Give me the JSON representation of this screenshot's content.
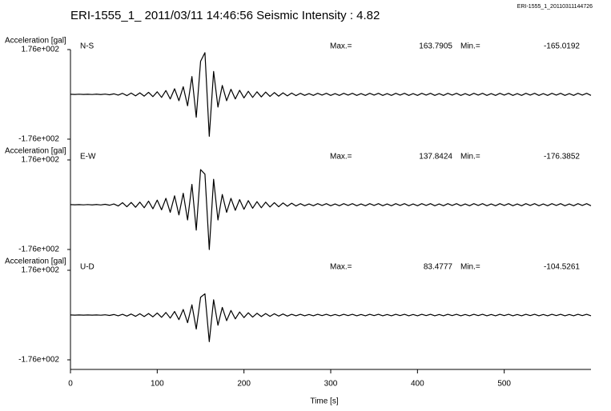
{
  "chart_data": {
    "type": "line",
    "title": "ERI-1555_1_  2011/03/11 14:46:56  Seismic Intensity : 4.82",
    "file_label": "ERI-1555_1_20110311144726",
    "ylabel": "Acceleration [gal]",
    "xlabel": "Time [s]",
    "max_label": "Max.=",
    "min_label": "Min.=",
    "xlim": [
      0,
      600
    ],
    "xticks": [
      0,
      100,
      200,
      300,
      400,
      500
    ],
    "ylim": [
      -176,
      176
    ],
    "yticks": [
      {
        "value": 176,
        "label": "1.76e+002"
      },
      {
        "value": -176,
        "label": "-1.76e+002"
      }
    ],
    "color": "#000000",
    "x": [
      0,
      5,
      10,
      15,
      20,
      25,
      30,
      35,
      40,
      45,
      50,
      55,
      60,
      65,
      70,
      75,
      80,
      85,
      90,
      95,
      100,
      105,
      110,
      115,
      120,
      125,
      130,
      135,
      140,
      145,
      150,
      155,
      160,
      165,
      170,
      175,
      180,
      185,
      190,
      195,
      200,
      205,
      210,
      215,
      220,
      225,
      230,
      235,
      240,
      245,
      250,
      255,
      260,
      265,
      270,
      275,
      280,
      285,
      290,
      295,
      300,
      305,
      310,
      315,
      320,
      325,
      330,
      335,
      340,
      345,
      350,
      355,
      360,
      365,
      370,
      375,
      380,
      385,
      390,
      395,
      400,
      405,
      410,
      415,
      420,
      425,
      430,
      435,
      440,
      445,
      450,
      455,
      460,
      465,
      470,
      475,
      480,
      485,
      490,
      495,
      500,
      505,
      510,
      515,
      520,
      525,
      530,
      535,
      540,
      545,
      550,
      555,
      560,
      565,
      570,
      575,
      580,
      585,
      590,
      595,
      600
    ],
    "series": [
      {
        "name": "N-S",
        "max": 163.7905,
        "min": -165.0192,
        "values": [
          0.5,
          -0.5,
          0.6,
          -0.5,
          0.5,
          -0.6,
          0.7,
          -0.8,
          1,
          -1.5,
          2,
          -3,
          4,
          -5,
          5,
          -6,
          6,
          -7,
          8,
          -9,
          10,
          -12,
          15,
          -18,
          22,
          -25,
          30,
          -45,
          70,
          -90,
          130,
          163.7905,
          -165.0192,
          90,
          -50,
          35,
          -25,
          20,
          -18,
          16,
          -14,
          12,
          -12,
          10,
          -10,
          9,
          -8,
          7,
          -7,
          6,
          -6,
          5,
          -5,
          4,
          -4,
          3,
          -4,
          4,
          -3,
          4,
          -4,
          3,
          -4,
          4,
          -3,
          4,
          -4,
          3,
          -4,
          4,
          -3,
          4,
          -4,
          3,
          -4,
          4,
          -3,
          4,
          -4,
          3,
          -4,
          4,
          -3,
          4,
          -4,
          3,
          -4,
          4,
          -3,
          4,
          -4,
          3,
          -4,
          4,
          -3,
          4,
          -4,
          3,
          -4,
          4,
          -3,
          4,
          -4,
          3,
          -4,
          4,
          -3,
          4,
          -4,
          3,
          -4,
          4,
          -3,
          4,
          -4,
          3,
          -4,
          4,
          -3,
          4,
          -4
        ]
      },
      {
        "name": "E-W",
        "max": 137.8424,
        "min": -176.3852,
        "values": [
          0.5,
          -0.5,
          0.5,
          -0.6,
          0.6,
          -0.7,
          0.8,
          -1,
          1.5,
          -2,
          3,
          -5,
          8,
          -8,
          9,
          -10,
          10,
          -12,
          14,
          -16,
          18,
          -20,
          25,
          -30,
          35,
          -40,
          45,
          -60,
          80,
          -100,
          137.8424,
          120,
          -176.3852,
          100,
          -60,
          40,
          -30,
          25,
          -22,
          20,
          -18,
          16,
          -14,
          12,
          -12,
          10,
          -9,
          8,
          -8,
          7,
          -6,
          6,
          -5,
          4,
          -4,
          3,
          -4,
          4,
          -3,
          4,
          -4,
          3,
          -4,
          4,
          -3,
          4,
          -4,
          3,
          -4,
          4,
          -3,
          4,
          -4,
          3,
          -4,
          4,
          -3,
          4,
          -4,
          3,
          -4,
          4,
          -3,
          4,
          -4,
          3,
          -4,
          4,
          -3,
          4,
          -4,
          3,
          -4,
          4,
          -3,
          4,
          -4,
          3,
          -4,
          4,
          -3,
          4,
          -4,
          3,
          -4,
          4,
          -3,
          4,
          -4,
          3,
          -4,
          4,
          -3,
          4,
          -4,
          3,
          -4,
          4,
          -3,
          4,
          -4
        ]
      },
      {
        "name": "U-D",
        "max": 83.4777,
        "min": -104.5261,
        "values": [
          0.3,
          -0.3,
          0.3,
          -0.4,
          0.4,
          -0.5,
          0.5,
          -0.6,
          1,
          -1.5,
          2,
          -3,
          3,
          -4,
          4,
          -5,
          5,
          -6,
          6,
          -7,
          8,
          -9,
          10,
          -12,
          14,
          -18,
          22,
          -30,
          40,
          -55,
          70,
          83.4777,
          -104.5261,
          60,
          -40,
          30,
          -22,
          18,
          -15,
          12,
          -10,
          9,
          -8,
          7,
          -6,
          6,
          -5,
          5,
          -4,
          4,
          -4,
          3,
          -3,
          3,
          -3,
          2,
          -3,
          3,
          -2,
          3,
          -3,
          2,
          -3,
          3,
          -2,
          3,
          -3,
          2,
          -3,
          3,
          -2,
          3,
          -3,
          2,
          -3,
          3,
          -2,
          3,
          -3,
          2,
          -3,
          3,
          -2,
          3,
          -3,
          2,
          -3,
          3,
          -2,
          3,
          -3,
          2,
          -3,
          3,
          -2,
          3,
          -3,
          2,
          -3,
          3,
          -2,
          3,
          -3,
          2,
          -3,
          3,
          -2,
          3,
          -3,
          2,
          -3,
          3,
          -2,
          3,
          -3,
          2,
          -3,
          3,
          -2,
          3,
          -3
        ]
      }
    ]
  }
}
